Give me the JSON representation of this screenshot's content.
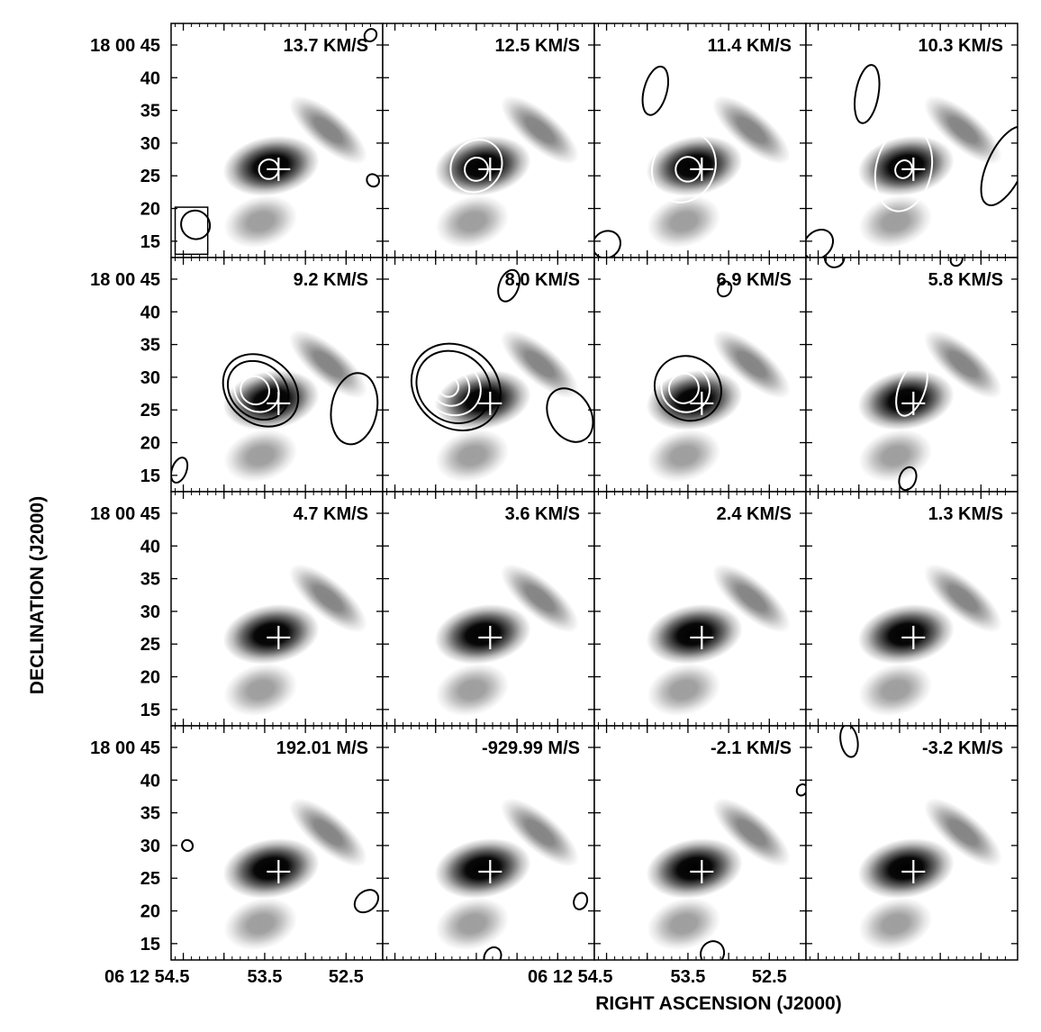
{
  "chart_data": {
    "type": "channel_map",
    "xlabel": "RIGHT ASCENSION (J2000)",
    "ylabel": "DECLINATION (J2000)",
    "grid": {
      "rows": 4,
      "cols": 4
    },
    "x_axis": {
      "units": "RA seconds (06 12 ss.s)",
      "range": [
        54.65,
        52.05
      ],
      "tick_labels": [
        {
          "panel": 12,
          "ra_s": 54.5,
          "label": "06 12 54.5"
        },
        {
          "panel": 12,
          "ra_s": 53.5,
          "label": "53.5"
        },
        {
          "panel": 12,
          "ra_s": 52.5,
          "label": "52.5"
        },
        {
          "panel": 14,
          "ra_s": 54.5,
          "label": "06 12 54.5"
        },
        {
          "panel": 14,
          "ra_s": 53.5,
          "label": "53.5"
        },
        {
          "panel": 14,
          "ra_s": 52.5,
          "label": "52.5"
        }
      ]
    },
    "y_axis": {
      "units": "Dec arcsec (18 00 ss)",
      "range": [
        12.5,
        48.3
      ],
      "tick_values": [
        45,
        40,
        35,
        30,
        25,
        20,
        15
      ],
      "tick_labels": [
        "18 00 45",
        "40",
        "35",
        "30",
        "25",
        "20",
        "15"
      ]
    },
    "cross_marker": {
      "ra_s": 53.33,
      "dec_s": 26
    },
    "greyscale_sources": [
      {
        "ra_s": 53.42,
        "dec_s": 26.5,
        "strength": 1.0,
        "sx": 0.26,
        "sy": 2.9,
        "angle_deg": -10
      },
      {
        "ra_s": 52.72,
        "dec_s": 32.0,
        "strength": 0.48,
        "sx": 0.26,
        "sy": 1.8,
        "angle_deg": 40
      },
      {
        "ra_s": 53.55,
        "dec_s": 18.0,
        "strength": 0.38,
        "sx": 0.2,
        "sy": 2.5,
        "angle_deg": -15
      }
    ],
    "beam": {
      "ra_s": 54.35,
      "dec_s": 17.5,
      "width_s": 0.36,
      "height_arcsec": 4.3,
      "angle_deg": 40,
      "box": {
        "ra_range": [
          54.6,
          54.2
        ],
        "dec_range": [
          13.0,
          20.2
        ]
      }
    },
    "panels": [
      {
        "velocity": "13.7 KM/S",
        "contours": [
          {
            "ra_s": 53.45,
            "dec_s": 26,
            "w": 0.12,
            "h": 1.5,
            "angle": 50,
            "color": "white"
          },
          {
            "ra_s": 52.2,
            "dec_s": 46.5,
            "w": 0.07,
            "h": 1.0,
            "angle": 40,
            "color": "black"
          },
          {
            "ra_s": 52.17,
            "dec_s": 24.3,
            "w": 0.08,
            "h": 0.9,
            "angle": 50,
            "color": "black"
          }
        ]
      },
      {
        "velocity": "12.5 KM/S",
        "contours": [
          {
            "ra_s": 53.5,
            "dec_s": 26.5,
            "w": 0.3,
            "h": 4.2,
            "angle": 40,
            "color": "white"
          },
          {
            "ra_s": 53.5,
            "dec_s": 26.0,
            "w": 0.14,
            "h": 1.8,
            "angle": 45,
            "color": "white"
          }
        ]
      },
      {
        "velocity": "11.4 KM/S",
        "contours": [
          {
            "ra_s": 53.55,
            "dec_s": 26.3,
            "w": 0.38,
            "h": 5.5,
            "angle": 25,
            "color": "white"
          },
          {
            "ra_s": 53.5,
            "dec_s": 26.0,
            "w": 0.15,
            "h": 1.9,
            "angle": 40,
            "color": "white"
          },
          {
            "ra_s": 53.9,
            "dec_s": 38.0,
            "w": 0.14,
            "h": 3.8,
            "angle": 15,
            "color": "black"
          },
          {
            "ra_s": 54.5,
            "dec_s": 14.5,
            "w": 0.16,
            "h": 2.2,
            "angle": 50,
            "color": "black"
          }
        ]
      },
      {
        "velocity": "10.3 KM/S",
        "contours": [
          {
            "ra_s": 53.45,
            "dec_s": 26.0,
            "w": 0.34,
            "h": 6.5,
            "angle": 12,
            "color": "white"
          },
          {
            "ra_s": 53.45,
            "dec_s": 26.0,
            "w": 0.1,
            "h": 1.4,
            "angle": 30,
            "color": "white"
          },
          {
            "ra_s": 53.9,
            "dec_s": 37.5,
            "w": 0.14,
            "h": 4.5,
            "angle": 10,
            "color": "black"
          },
          {
            "ra_s": 52.2,
            "dec_s": 26.5,
            "w": 0.22,
            "h": 6.5,
            "angle": 25,
            "color": "black"
          },
          {
            "ra_s": 54.5,
            "dec_s": 14.5,
            "w": 0.16,
            "h": 2.5,
            "angle": 45,
            "color": "black"
          }
        ]
      },
      {
        "velocity": "9.2 KM/S",
        "contours": [
          {
            "ra_s": 53.55,
            "dec_s": 28.0,
            "w": 0.5,
            "h": 5.0,
            "angle": 40,
            "color": "black"
          },
          {
            "ra_s": 53.58,
            "dec_s": 28.0,
            "w": 0.4,
            "h": 4.1,
            "angle": 40,
            "color": "black"
          },
          {
            "ra_s": 53.6,
            "dec_s": 28.0,
            "w": 0.29,
            "h": 3.1,
            "angle": 40,
            "color": "white"
          },
          {
            "ra_s": 53.62,
            "dec_s": 28.0,
            "w": 0.18,
            "h": 2.1,
            "angle": 40,
            "color": "white"
          },
          {
            "ra_s": 52.4,
            "dec_s": 25.2,
            "w": 0.28,
            "h": 5.5,
            "angle": 10,
            "color": "black"
          },
          {
            "ra_s": 54.55,
            "dec_s": 15.8,
            "w": 0.09,
            "h": 2.0,
            "angle": 20,
            "color": "black"
          }
        ]
      },
      {
        "velocity": "8.0 KM/S",
        "contours": [
          {
            "ra_s": 53.75,
            "dec_s": 28.5,
            "w": 0.58,
            "h": 6.2,
            "angle": 40,
            "color": "black"
          },
          {
            "ra_s": 53.78,
            "dec_s": 28.5,
            "w": 0.48,
            "h": 5.2,
            "angle": 40,
            "color": "black"
          },
          {
            "ra_s": 53.8,
            "dec_s": 28.5,
            "w": 0.37,
            "h": 4.1,
            "angle": 40,
            "color": "white"
          },
          {
            "ra_s": 53.82,
            "dec_s": 28.5,
            "w": 0.24,
            "h": 2.8,
            "angle": 40,
            "color": "white"
          },
          {
            "ra_s": 53.84,
            "dec_s": 28.5,
            "w": 0.12,
            "h": 1.5,
            "angle": 40,
            "color": "white"
          },
          {
            "ra_s": 52.35,
            "dec_s": 24.2,
            "w": 0.35,
            "h": 3.2,
            "angle": 60,
            "color": "black"
          },
          {
            "ra_s": 53.1,
            "dec_s": 44.0,
            "w": 0.12,
            "h": 2.5,
            "angle": 20,
            "color": "black"
          }
        ]
      },
      {
        "velocity": "6.9 KM/S",
        "contours": [
          {
            "ra_s": 53.5,
            "dec_s": 28.3,
            "w": 0.42,
            "h": 4.8,
            "angle": 35,
            "color": "black"
          },
          {
            "ra_s": 53.53,
            "dec_s": 28.3,
            "w": 0.3,
            "h": 3.6,
            "angle": 35,
            "color": "white"
          },
          {
            "ra_s": 53.55,
            "dec_s": 28.3,
            "w": 0.18,
            "h": 2.3,
            "angle": 35,
            "color": "white"
          },
          {
            "ra_s": 53.05,
            "dec_s": 43.5,
            "w": 0.08,
            "h": 1.2,
            "angle": 30,
            "color": "black"
          }
        ]
      },
      {
        "velocity": "5.8 KM/S",
        "contours": [
          {
            "ra_s": 53.35,
            "dec_s": 28.2,
            "w": 0.16,
            "h": 4.3,
            "angle": 20,
            "color": "white"
          },
          {
            "ra_s": 53.4,
            "dec_s": 14.5,
            "w": 0.1,
            "h": 1.8,
            "angle": 20,
            "color": "black"
          },
          {
            "ra_s": 54.3,
            "dec_s": 48.3,
            "w": 0.12,
            "h": 1.5,
            "angle": 40,
            "color": "black"
          },
          {
            "ra_s": 52.8,
            "dec_s": 48.0,
            "w": 0.07,
            "h": 1.0,
            "angle": 30,
            "color": "black"
          }
        ]
      },
      {
        "velocity": "4.7 KM/S",
        "contours": []
      },
      {
        "velocity": "3.6 KM/S",
        "contours": []
      },
      {
        "velocity": "2.4 KM/S",
        "contours": []
      },
      {
        "velocity": "1.3 KM/S",
        "contours": []
      },
      {
        "velocity": "192.01 M/S",
        "contours": [
          {
            "ra_s": 54.45,
            "dec_s": 30.0,
            "w": 0.07,
            "h": 0.8,
            "angle": 50,
            "color": "black"
          },
          {
            "ra_s": 52.25,
            "dec_s": 21.5,
            "w": 0.12,
            "h": 2.0,
            "angle": 50,
            "color": "black"
          }
        ]
      },
      {
        "velocity": "-929.99 M/S",
        "contours": [
          {
            "ra_s": 52.22,
            "dec_s": 21.5,
            "w": 0.08,
            "h": 1.3,
            "angle": 20,
            "color": "black"
          },
          {
            "ra_s": 53.3,
            "dec_s": 13.0,
            "w": 0.1,
            "h": 1.5,
            "angle": 30,
            "color": "black"
          }
        ]
      },
      {
        "velocity": "-2.1 KM/S",
        "contours": [
          {
            "ra_s": 53.2,
            "dec_s": 13.5,
            "w": 0.14,
            "h": 1.9,
            "angle": 30,
            "color": "black"
          },
          {
            "ra_s": 52.1,
            "dec_s": 38.5,
            "w": 0.06,
            "h": 0.9,
            "angle": 30,
            "color": "black"
          }
        ]
      },
      {
        "velocity": "-3.2 KM/S",
        "contours": [
          {
            "ra_s": 54.12,
            "dec_s": 46.0,
            "w": 0.2,
            "h": 1.3,
            "angle": 80,
            "color": "black"
          }
        ]
      }
    ]
  }
}
